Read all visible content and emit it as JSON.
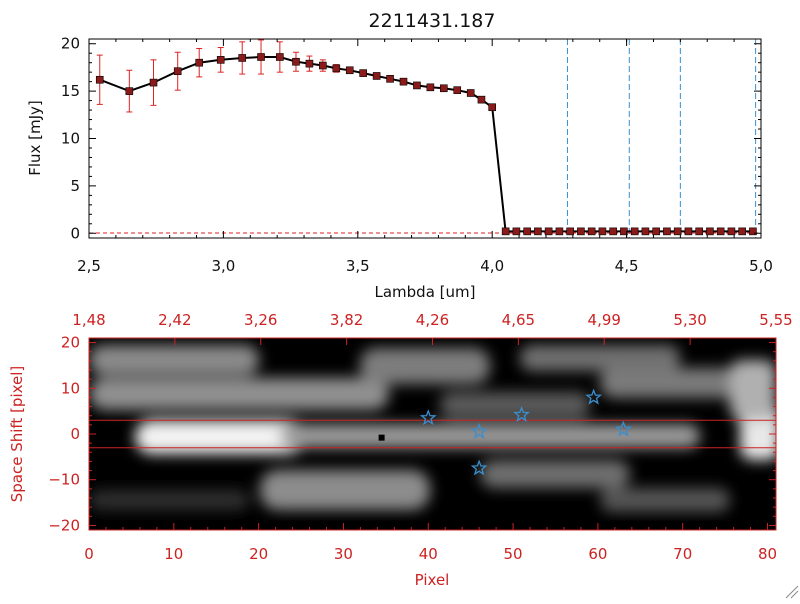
{
  "chart_data": [
    {
      "type": "line",
      "title": "2211431.187",
      "xlabel": "Lambda [um]",
      "ylabel": "Flux [mJy]",
      "xlim": [
        2.5,
        5.0
      ],
      "ylim": [
        -0.5,
        20.5
      ],
      "xticks": [
        2.5,
        3.0,
        3.5,
        4.0,
        4.5,
        5.0
      ],
      "xtick_labels": [
        "2,5",
        "3,0",
        "3,5",
        "4,0",
        "4,5",
        "5,0"
      ],
      "yticks": [
        0,
        5,
        10,
        15,
        20
      ],
      "ytick_labels": [
        "0",
        "5",
        "10",
        "15",
        "20"
      ],
      "colors": {
        "line": "#000000",
        "marker": "#8b1a1a",
        "errorbar": "#dd2222",
        "vline": "#3a8fd0",
        "zero_line": "#dd2222"
      },
      "series": [
        {
          "x": [
            2.54,
            2.65,
            2.74,
            2.83,
            2.91,
            2.99,
            3.07,
            3.14,
            3.21,
            3.27,
            3.32,
            3.37,
            3.42,
            3.47,
            3.52,
            3.57,
            3.62,
            3.67,
            3.72,
            3.77,
            3.82,
            3.87,
            3.92,
            3.96,
            4.0,
            4.05,
            4.09,
            4.13,
            4.17,
            4.21,
            4.25,
            4.29,
            4.33,
            4.37,
            4.41,
            4.45,
            4.49,
            4.53,
            4.57,
            4.61,
            4.65,
            4.69,
            4.73,
            4.77,
            4.81,
            4.85,
            4.89,
            4.93,
            4.97
          ],
          "y": [
            16.2,
            15.0,
            15.9,
            17.1,
            18.0,
            18.3,
            18.5,
            18.6,
            18.6,
            18.1,
            17.9,
            17.7,
            17.4,
            17.2,
            16.9,
            16.6,
            16.3,
            16.0,
            15.6,
            15.4,
            15.3,
            15.1,
            14.8,
            14.1,
            13.3,
            0.2,
            0.2,
            0.2,
            0.2,
            0.2,
            0.2,
            0.2,
            0.2,
            0.2,
            0.2,
            0.2,
            0.2,
            0.2,
            0.2,
            0.2,
            0.2,
            0.2,
            0.2,
            0.2,
            0.2,
            0.2,
            0.2,
            0.2,
            0.2
          ],
          "yerr": [
            2.6,
            2.2,
            2.4,
            2.0,
            1.5,
            1.3,
            1.7,
            1.8,
            1.6,
            1.0,
            0.8,
            0.6,
            0.4,
            0.3,
            0.3,
            0.3,
            0.3,
            0.3,
            0.3,
            0.3,
            0.3,
            0.3,
            0.3,
            0.3,
            0.3,
            0,
            0,
            0,
            0,
            0,
            0,
            0,
            0,
            0,
            0,
            0,
            0,
            0,
            0,
            0,
            0,
            0,
            0,
            0,
            0,
            0,
            0,
            0,
            0
          ]
        }
      ],
      "vlines": [
        4.28,
        4.51,
        4.7,
        4.98
      ],
      "grid": false,
      "legend": "none"
    },
    {
      "type": "heatmap",
      "xlabel": "Pixel",
      "ylabel": "Space Shift [pixel]",
      "xlim": [
        0,
        81
      ],
      "ylim": [
        -21,
        21
      ],
      "xticks": [
        0,
        10,
        20,
        30,
        40,
        50,
        60,
        70,
        80
      ],
      "xtick_labels": [
        "0",
        "10",
        "20",
        "30",
        "40",
        "50",
        "60",
        "70",
        "80"
      ],
      "yticks": [
        -20,
        -10,
        0,
        10,
        20
      ],
      "ytick_labels": [
        "−20",
        "−10",
        "0",
        "10",
        "20"
      ],
      "top_axis_labels": [
        "1,48",
        "2,42",
        "3,26",
        "3,82",
        "4,26",
        "4,65",
        "4,99",
        "5,30",
        "5,55"
      ],
      "colormap": "grayscale",
      "colors": {
        "axis": "#cc2222",
        "markers": "#3a8fd0",
        "lines": "#cc2222"
      },
      "hlines": [
        3,
        -3
      ],
      "markers": [
        {
          "x": 40,
          "y": 3.5
        },
        {
          "x": 46,
          "y": 0.5
        },
        {
          "x": 51,
          "y": 4.2
        },
        {
          "x": 59.5,
          "y": 8
        },
        {
          "x": 63,
          "y": 1
        },
        {
          "x": 46,
          "y": -7.5
        }
      ],
      "dark_pixel": {
        "x": 34.5,
        "y": -0.8
      },
      "grid": false,
      "legend": "none"
    }
  ]
}
